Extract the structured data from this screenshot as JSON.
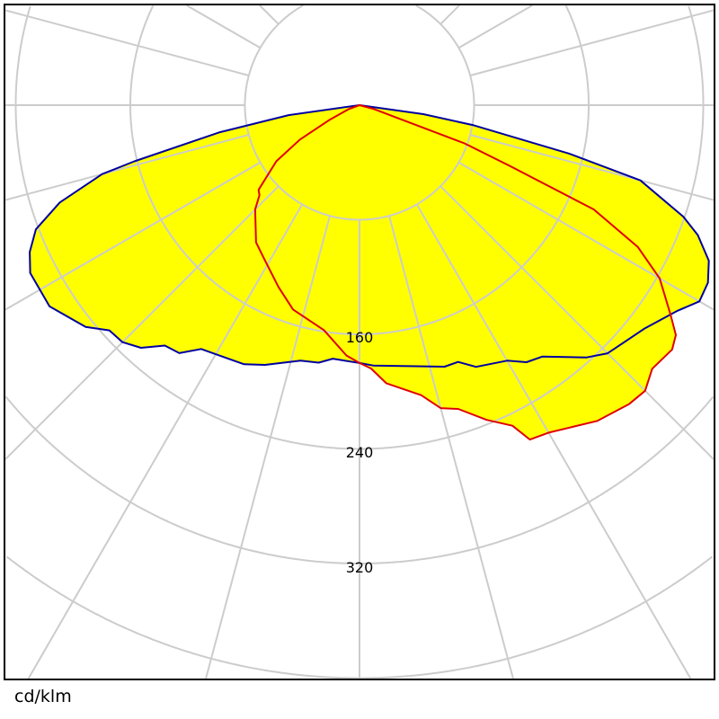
{
  "chart_data": {
    "type": "polar",
    "title": "",
    "unit_label": "cd/klm",
    "angle_unit": "deg",
    "angle_zero": "down",
    "angular_grid_step": 15,
    "radial_grid": [
      80,
      160,
      240,
      320,
      400,
      480
    ],
    "radial_tick_labels": [
      "160",
      "240",
      "320"
    ],
    "radial_tick_values": [
      160,
      240,
      320
    ],
    "grid": true,
    "fill_color": "#ffff00",
    "grid_color": "#cccccc",
    "series": [
      {
        "color": "#0000a0",
        "points": [
          [
            -90,
            0
          ],
          [
            -82,
            50
          ],
          [
            -79,
            100
          ],
          [
            -76,
            162
          ],
          [
            -75,
            186
          ],
          [
            -72,
            220
          ],
          [
            -69,
            242
          ],
          [
            -66,
            252
          ],
          [
            -63,
            258
          ],
          [
            -57,
            258
          ],
          [
            -51,
            246
          ],
          [
            -48,
            235
          ],
          [
            -45,
            234
          ],
          [
            -42,
            228
          ],
          [
            -39,
            216
          ],
          [
            -36,
            214
          ],
          [
            -33,
            203
          ],
          [
            -24,
            198
          ],
          [
            -20,
            193
          ],
          [
            -13,
            183
          ],
          [
            -9,
            182
          ],
          [
            -6,
            178
          ],
          [
            0,
            180
          ],
          [
            3,
            182
          ],
          [
            18,
            192
          ],
          [
            21,
            192
          ],
          [
            24,
            200
          ],
          [
            30,
            206
          ],
          [
            33,
            214
          ],
          [
            36,
            217
          ],
          [
            42,
            237
          ],
          [
            45,
            245
          ],
          [
            52,
            253
          ],
          [
            57,
            264
          ],
          [
            60,
            274
          ],
          [
            63,
            273
          ],
          [
            66,
            267
          ],
          [
            69,
            253
          ],
          [
            71,
            239
          ],
          [
            75,
            203
          ],
          [
            77,
            150
          ],
          [
            80,
            81
          ],
          [
            82,
            45
          ],
          [
            90,
            0
          ]
        ]
      },
      {
        "color": "#e00000",
        "points": [
          [
            -90,
            0
          ],
          [
            -70,
            8
          ],
          [
            -64,
            23
          ],
          [
            -60,
            48
          ],
          [
            -56,
            70
          ],
          [
            -50,
            92
          ],
          [
            -48,
            94
          ],
          [
            -45,
            103
          ],
          [
            -37,
            120
          ],
          [
            -32,
            126
          ],
          [
            -24,
            139
          ],
          [
            -18,
            150
          ],
          [
            -9,
            159
          ],
          [
            -3,
            175
          ],
          [
            0,
            180
          ],
          [
            2.5,
            184
          ],
          [
            5.5,
            195
          ],
          [
            12,
            207
          ],
          [
            15,
            219
          ],
          [
            18,
            223
          ],
          [
            22,
            237
          ],
          [
            25.5,
            248
          ],
          [
            27,
            262
          ],
          [
            30,
            264
          ],
          [
            37,
            276
          ],
          [
            42,
            281
          ],
          [
            45,
            282
          ],
          [
            48,
            275
          ],
          [
            52,
            277
          ],
          [
            54,
            273
          ],
          [
            56,
            262
          ],
          [
            60,
            242
          ],
          [
            63,
            218
          ],
          [
            66,
            179
          ],
          [
            68,
            113
          ],
          [
            70,
            78
          ],
          [
            75,
            10
          ],
          [
            90,
            0
          ]
        ]
      }
    ]
  }
}
